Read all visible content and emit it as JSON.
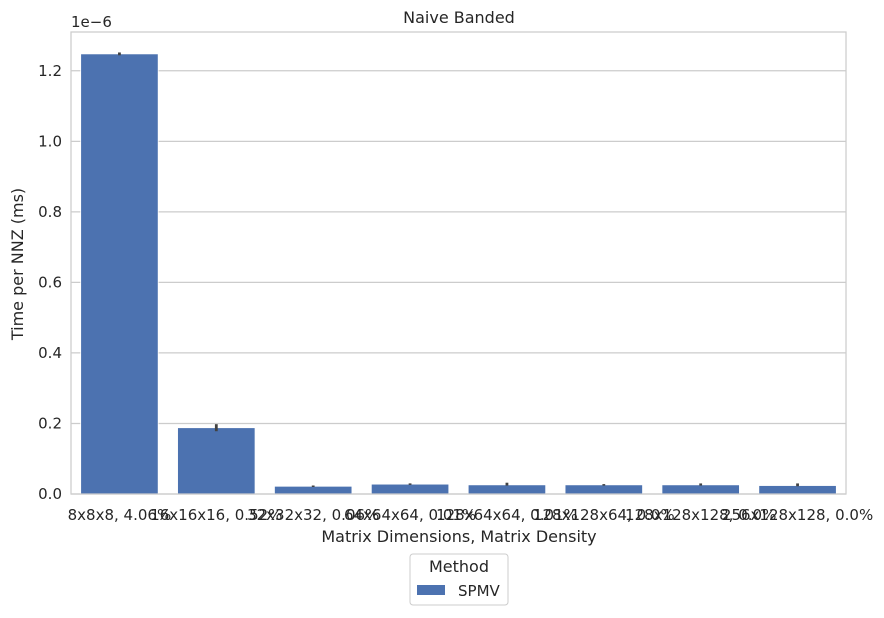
{
  "chart_data": {
    "type": "bar",
    "title": "Naive Banded",
    "xlabel": "Matrix Dimensions, Matrix Density",
    "ylabel": "Time per NNZ (ms)",
    "y_offset_text": "1e−6",
    "y_scale_factor": 1e-06,
    "ylim": [
      0,
      1.31
    ],
    "yticks": [
      0.0,
      0.2,
      0.4,
      0.6,
      0.8,
      1.0,
      1.2
    ],
    "ytick_labels": [
      "0.0",
      "0.2",
      "0.4",
      "0.6",
      "0.8",
      "1.0",
      "1.2"
    ],
    "grid": "y",
    "categories": [
      "8x8x8, 4.06%",
      "16x16x16, 0.52%",
      "32x32x32, 0.06%",
      "64x64x64, 0.01%",
      "128x64x64, 0.01%",
      "128x128x64, 0.0%",
      "128x128x128, 0.0%",
      "256x128x128, 0.0%"
    ],
    "series": [
      {
        "name": "SPMV",
        "color": "#4c72b0",
        "values": [
          1.248,
          0.188,
          0.022,
          0.028,
          0.026,
          0.026,
          0.026,
          0.024
        ],
        "error_low": [
          1.244,
          0.178,
          0.022,
          0.028,
          0.024,
          0.026,
          0.024,
          0.022
        ],
        "error_high": [
          1.252,
          0.198,
          0.022,
          0.028,
          0.032,
          0.026,
          0.03,
          0.03
        ]
      }
    ],
    "legend": {
      "title": "Method",
      "placement": "bottom-center"
    }
  }
}
